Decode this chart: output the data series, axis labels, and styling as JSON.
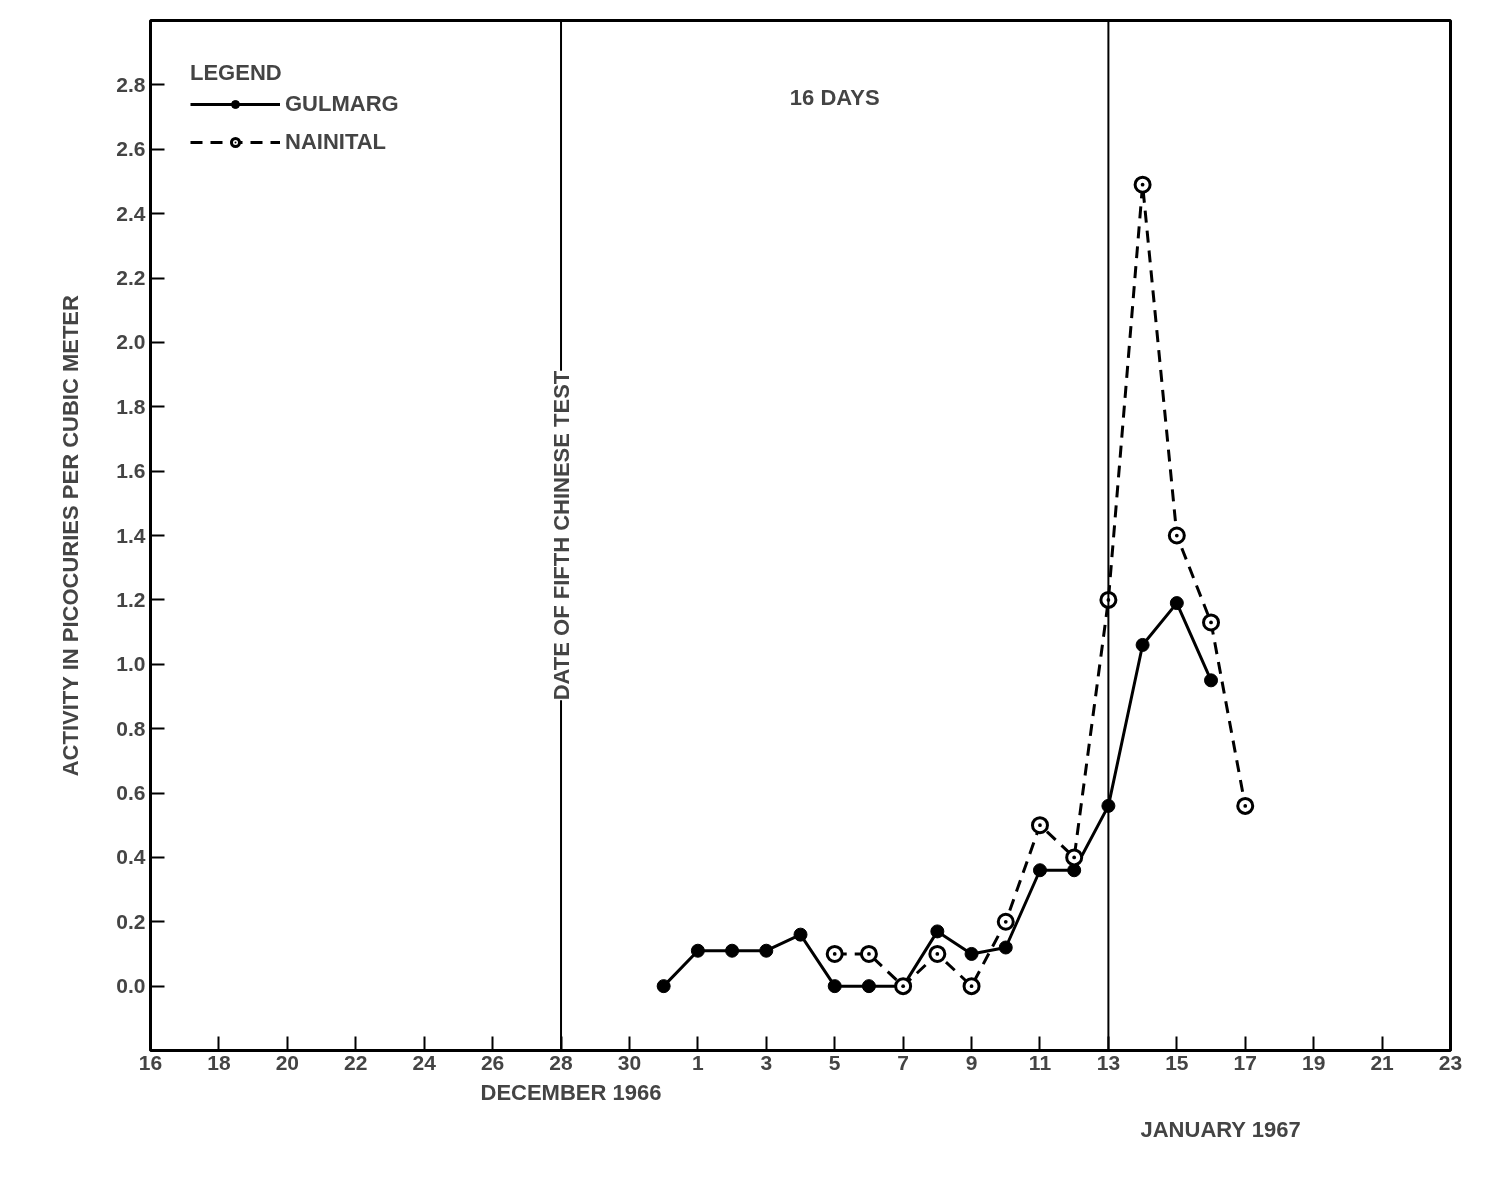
{
  "chart_data": {
    "type": "line",
    "xlabel": "DECEMBER 1966",
    "ylabel": "ACTIVITY IN PICOCURIES PER CUBIC METER",
    "legend_title": "LEGEND",
    "annotations": [
      "16 DAYS",
      "JANUARY 1967"
    ],
    "ref_lines": [
      {
        "axis": "x",
        "value": "1966-12-28",
        "label": "DATE OF FIFTH CHINESE TEST"
      },
      {
        "axis": "x",
        "value": "1967-01-13"
      }
    ],
    "series": [
      {
        "name": "GULMARG",
        "color": "#000000",
        "line_style": "solid",
        "x": [
          "1966-12-31",
          "1967-01-01",
          "1967-01-02",
          "1967-01-03",
          "1967-01-04",
          "1967-01-05",
          "1967-01-06",
          "1967-01-07",
          "1967-01-08",
          "1967-01-09",
          "1967-01-10",
          "1967-01-11",
          "1967-01-12",
          "1967-01-13",
          "1967-01-14",
          "1967-01-15",
          "1967-01-16"
        ],
        "values": [
          0.0,
          0.11,
          0.11,
          0.11,
          0.16,
          0.0,
          0.0,
          0.0,
          0.17,
          0.1,
          0.12,
          0.36,
          0.36,
          0.56,
          1.06,
          1.19,
          0.95
        ]
      },
      {
        "name": "NAINITAL",
        "color": "#000000",
        "line_style": "dashed",
        "x": [
          "1967-01-05",
          "1967-01-06",
          "1967-01-07",
          "1967-01-08",
          "1967-01-09",
          "1967-01-10",
          "1967-01-11",
          "1967-01-12",
          "1967-01-13",
          "1967-01-14",
          "1967-01-15",
          "1967-01-16",
          "1967-01-17"
        ],
        "values": [
          0.1,
          0.1,
          0.0,
          0.1,
          0.0,
          0.2,
          0.5,
          0.4,
          1.2,
          2.49,
          1.4,
          1.13,
          0.56
        ]
      }
    ],
    "marker": "circle",
    "legend": "top left",
    "grid": false,
    "xlim": [
      "1966-12-16",
      "1967-01-23"
    ],
    "xticks": [
      {
        "value": "1966-12-16",
        "label": "16"
      },
      {
        "value": "1966-12-18",
        "label": "18"
      },
      {
        "value": "1966-12-20",
        "label": "20"
      },
      {
        "value": "1966-12-22",
        "label": "22"
      },
      {
        "value": "1966-12-24",
        "label": "24"
      },
      {
        "value": "1966-12-26",
        "label": "26"
      },
      {
        "value": "1966-12-28",
        "label": "28"
      },
      {
        "value": "1966-12-30",
        "label": "30"
      },
      {
        "value": "1967-01-01",
        "label": "1"
      },
      {
        "value": "1967-01-03",
        "label": "3"
      },
      {
        "value": "1967-01-05",
        "label": "5"
      },
      {
        "value": "1967-01-07",
        "label": "7"
      },
      {
        "value": "1967-01-09",
        "label": "9"
      },
      {
        "value": "1967-01-11",
        "label": "11"
      },
      {
        "value": "1967-01-13",
        "label": "13"
      },
      {
        "value": "1967-01-15",
        "label": "15"
      },
      {
        "value": "1967-01-17",
        "label": "17"
      },
      {
        "value": "1967-01-19",
        "label": "19"
      },
      {
        "value": "1967-01-21",
        "label": "21"
      },
      {
        "value": "1967-01-23",
        "label": "23"
      }
    ],
    "ylim": [
      -0.2,
      3.0
    ],
    "yticks": [
      {
        "value": 0,
        "label": "0.0"
      },
      {
        "value": 0.2,
        "label": "0.2"
      },
      {
        "value": 0.4,
        "label": "0.4"
      },
      {
        "value": 0.6,
        "label": "0.6"
      },
      {
        "value": 0.8,
        "label": "0.8"
      },
      {
        "value": 1.0,
        "label": "1.0"
      },
      {
        "value": 1.2,
        "label": "1.2"
      },
      {
        "value": 1.4,
        "label": "1.4"
      },
      {
        "value": 1.6,
        "label": "1.6"
      },
      {
        "value": 1.8,
        "label": "1.8"
      },
      {
        "value": 2.0,
        "label": "2.0"
      },
      {
        "value": 2.2,
        "label": "2.2"
      },
      {
        "value": 2.4,
        "label": "2.4"
      },
      {
        "value": 2.6,
        "label": "2.6"
      },
      {
        "value": 2.8,
        "label": "2.8"
      }
    ]
  }
}
